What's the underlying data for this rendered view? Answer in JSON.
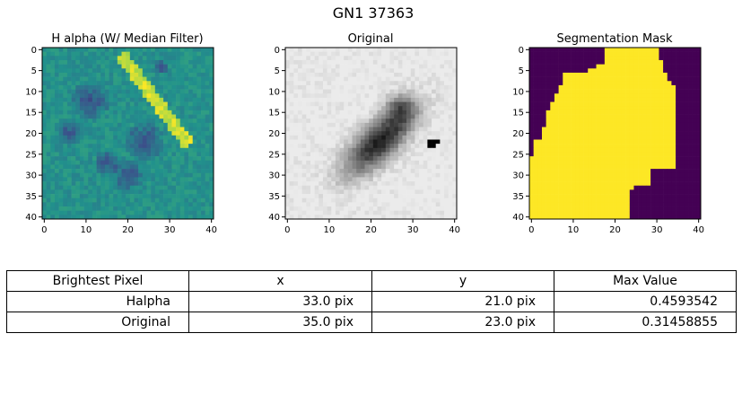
{
  "figure": {
    "title": "GN1 37363"
  },
  "chart_data": [
    {
      "type": "heatmap",
      "title": "H alpha (W/ Median Filter)",
      "colormap": "viridis",
      "xlim": [
        0,
        40
      ],
      "ylim": [
        40,
        0
      ],
      "xticks": [
        "0",
        "10",
        "20",
        "30",
        "40"
      ],
      "yticks": [
        "0",
        "5",
        "10",
        "15",
        "20",
        "25",
        "30",
        "35",
        "40"
      ],
      "description_values": {
        "peak_pixel": [
          33,
          21
        ],
        "peak_value": 0.4593542
      }
    },
    {
      "type": "heatmap",
      "title": "Original",
      "colormap": "gray_r",
      "xlim": [
        0,
        40
      ],
      "ylim": [
        40,
        0
      ],
      "xticks": [
        "0",
        "10",
        "20",
        "30",
        "40"
      ],
      "yticks": [
        "0",
        "5",
        "10",
        "15",
        "20",
        "25",
        "30",
        "35",
        "40"
      ],
      "description_values": {
        "peak_pixel": [
          35,
          23
        ],
        "peak_value": 0.31458855
      }
    },
    {
      "type": "heatmap",
      "title": "Segmentation Mask",
      "colormap": "binary-viridis",
      "xlim": [
        0,
        40
      ],
      "ylim": [
        40,
        0
      ],
      "xticks": [
        "0",
        "10",
        "20",
        "30",
        "40"
      ],
      "yticks": [
        "0",
        "5",
        "10",
        "15",
        "20",
        "25",
        "30",
        "35",
        "40"
      ],
      "colors": {
        "on": "#fde725",
        "off": "#440154"
      }
    },
    {
      "type": "table",
      "columns": [
        "Brightest Pixel",
        "x",
        "y",
        "Max Value"
      ],
      "rows": [
        [
          "Halpha",
          "33.0 pix",
          "21.0 pix",
          "0.4593542"
        ],
        [
          "Original",
          "35.0 pix",
          "23.0 pix",
          "0.31458855"
        ]
      ]
    }
  ]
}
